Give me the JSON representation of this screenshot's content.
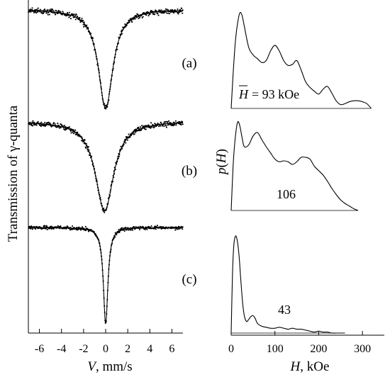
{
  "figure": {
    "left_ylabel_prefix": "Transmission of ",
    "left_ylabel_symbol": "γ",
    "left_ylabel_suffix": "-quanta",
    "left_xlabel_var": "V",
    "left_xlabel_unit": ", mm/s",
    "right_ylabel_var": "p",
    "right_ylabel_arg": "H",
    "right_xlabel_var": "H",
    "right_xlabel_unit": ", kOe",
    "panel_labels": [
      "(a)",
      "(b)",
      "(c)"
    ],
    "mean_field_prefix": "H",
    "mean_field_texts": [
      "= 93 kOe",
      "106",
      "43"
    ]
  },
  "chart_data": [
    {
      "type": "scatter",
      "panel": "velocity spectra",
      "xlabel": "V, mm/s",
      "ylabel": "Transmission of γ-quanta",
      "xlim": [
        -7,
        7
      ],
      "xticks": [
        -6,
        -4,
        -2,
        0,
        2,
        4,
        6
      ],
      "series": [
        {
          "label": "(a)",
          "center": 0.0,
          "line_width_mm_s": 1.6,
          "relative_depth": 1.0,
          "noise": "medium"
        },
        {
          "label": "(b)",
          "center": -0.1,
          "line_width_mm_s": 2.0,
          "relative_depth": 1.0,
          "noise": "medium"
        },
        {
          "label": "(c)",
          "center": 0.0,
          "line_width_mm_s": 0.5,
          "relative_depth": 1.0,
          "noise": "low"
        }
      ]
    },
    {
      "type": "line",
      "panel": "hyperfine field distributions",
      "xlabel": "H, kOe",
      "ylabel": "p(H)",
      "xlim": [
        0,
        350
      ],
      "xticks": [
        0,
        100,
        200,
        300
      ],
      "series": [
        {
          "label": "(a)",
          "mean_H_kOe": 93,
          "x": [
            0,
            5,
            10,
            15,
            20,
            25,
            30,
            40,
            50,
            60,
            70,
            80,
            90,
            100,
            110,
            120,
            130,
            140,
            150,
            160,
            170,
            180,
            190,
            200,
            210,
            220,
            230,
            240,
            250,
            260,
            270,
            280,
            290,
            300,
            310,
            320
          ],
          "y": [
            0.0,
            0.4,
            0.72,
            0.9,
            1.0,
            0.97,
            0.86,
            0.64,
            0.56,
            0.52,
            0.48,
            0.5,
            0.6,
            0.66,
            0.6,
            0.5,
            0.45,
            0.46,
            0.5,
            0.4,
            0.28,
            0.22,
            0.18,
            0.15,
            0.2,
            0.23,
            0.16,
            0.08,
            0.04,
            0.05,
            0.07,
            0.08,
            0.08,
            0.07,
            0.05,
            0.0
          ]
        },
        {
          "label": "(b)",
          "mean_H_kOe": 106,
          "x": [
            0,
            5,
            10,
            15,
            20,
            25,
            30,
            40,
            50,
            60,
            70,
            80,
            90,
            100,
            110,
            120,
            130,
            140,
            150,
            160,
            170,
            180,
            190,
            200,
            210,
            220,
            230,
            240,
            250,
            260,
            270,
            280,
            290
          ],
          "y": [
            0.0,
            0.55,
            0.85,
            1.0,
            0.95,
            0.82,
            0.72,
            0.74,
            0.84,
            0.88,
            0.8,
            0.72,
            0.65,
            0.58,
            0.55,
            0.56,
            0.55,
            0.52,
            0.55,
            0.6,
            0.6,
            0.58,
            0.5,
            0.45,
            0.4,
            0.33,
            0.25,
            0.18,
            0.12,
            0.08,
            0.05,
            0.02,
            0.0
          ]
        },
        {
          "label": "(c)",
          "mean_H_kOe": 43,
          "x": [
            0,
            3,
            6,
            10,
            14,
            18,
            22,
            26,
            30,
            35,
            40,
            45,
            50,
            55,
            60,
            70,
            80,
            90,
            100,
            110,
            120,
            130,
            140,
            150,
            160,
            170,
            180,
            190,
            200,
            210,
            220,
            230,
            240,
            250,
            260
          ],
          "y": [
            0.0,
            0.6,
            0.9,
            1.0,
            0.95,
            0.8,
            0.55,
            0.32,
            0.18,
            0.12,
            0.14,
            0.17,
            0.18,
            0.15,
            0.1,
            0.07,
            0.06,
            0.05,
            0.05,
            0.06,
            0.05,
            0.04,
            0.05,
            0.04,
            0.04,
            0.03,
            0.02,
            0.01,
            0.02,
            0.01,
            0.01,
            0.0,
            0.0,
            0.0,
            0.0
          ]
        }
      ]
    }
  ]
}
